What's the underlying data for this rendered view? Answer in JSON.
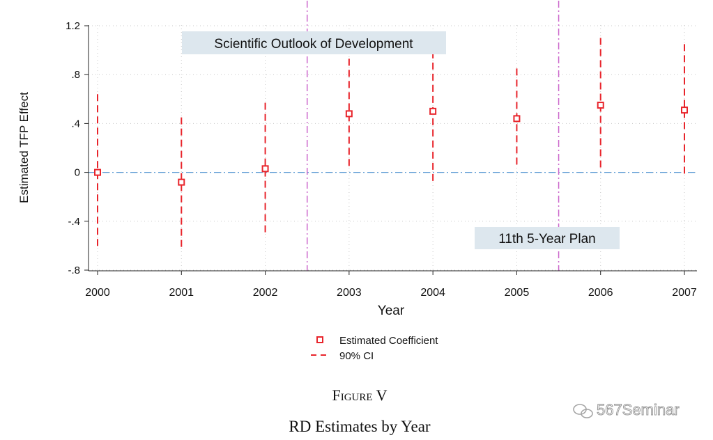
{
  "chart_data": {
    "type": "scatter",
    "ylabel": "Estimated TFP Effect",
    "xlabel": "Year",
    "x": [
      2000,
      2001,
      2002,
      2003,
      2004,
      2005,
      2006,
      2007
    ],
    "xticks": [
      "2000",
      "2001",
      "2002",
      "2003",
      "2004",
      "2005",
      "2006",
      "2007"
    ],
    "xlim": [
      2000,
      2007
    ],
    "ylim": [
      -0.8,
      1.2
    ],
    "yticks": [
      {
        "value": 1.2,
        "label": "1.2"
      },
      {
        "value": 0.8,
        "label": ".8"
      },
      {
        "value": 0.4,
        "label": ".4"
      },
      {
        "value": 0,
        "label": "0"
      },
      {
        "value": -0.4,
        "label": "-.4"
      },
      {
        "value": -0.8,
        "label": "-.8"
      }
    ],
    "grid": true,
    "series": [
      {
        "name": "Estimated Coefficient",
        "marker": "hollow-square",
        "color": "#e8242b",
        "values": [
          0.0,
          -0.08,
          0.03,
          0.48,
          0.5,
          0.44,
          0.55,
          0.51
        ]
      },
      {
        "name": "90% CI",
        "style": "dashed",
        "color": "#e8242b",
        "lower": [
          -0.63,
          -0.62,
          -0.5,
          0.04,
          -0.08,
          0.03,
          0.01,
          -0.02
        ],
        "upper": [
          0.64,
          0.45,
          0.57,
          0.93,
          0.99,
          0.85,
          1.1,
          1.05
        ]
      }
    ],
    "reference_lines": [
      {
        "axis": "y",
        "value": 0,
        "style": "dash-dot",
        "color": "#5b9bd5"
      },
      {
        "axis": "x",
        "value": 2002.5,
        "style": "dash-dot",
        "color": "#cc66cc"
      },
      {
        "axis": "x",
        "value": 2005.5,
        "style": "dash-dot",
        "color": "#cc66cc"
      }
    ],
    "annotations": [
      {
        "text": "Scientific Outlook of Development",
        "placement": "top-left"
      },
      {
        "text": "11th 5-Year Plan",
        "placement": "bottom-right"
      }
    ],
    "legend": {
      "placement": "bottom",
      "entries": [
        "Estimated Coefficient",
        "90% CI"
      ]
    },
    "caption": {
      "label": "Figure V",
      "title": "RD Estimates by Year"
    },
    "watermark": "567Seminar"
  },
  "colors": {
    "series": "#e8242b",
    "zero_line": "#5b9bd5",
    "event_line": "#cc66cc",
    "grid": "#c8c8c8",
    "annotation_box": "#dde7ee"
  }
}
